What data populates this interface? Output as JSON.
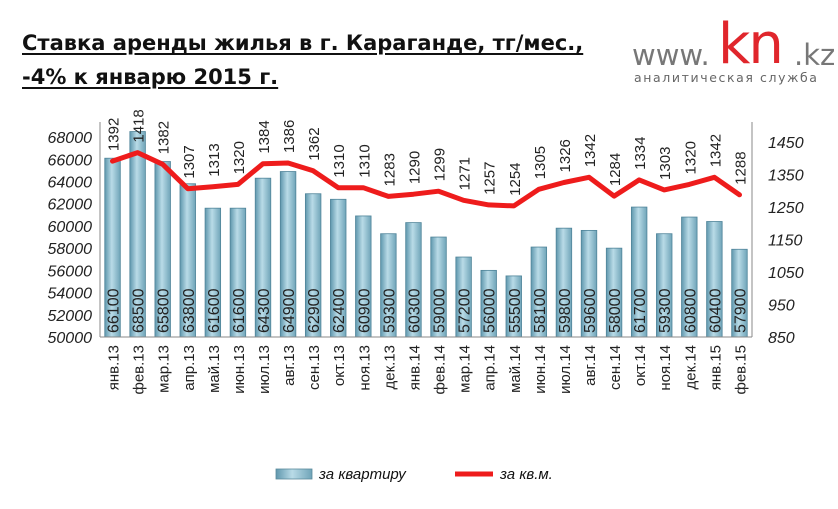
{
  "title": {
    "line1": "Ставка аренды жилья в г. Караганде, тг/мес.,",
    "line2": "-4% к январю 2015 г."
  },
  "logo": {
    "www": "www.",
    "kn": "kn",
    "kz": ".kz",
    "subtitle": "аналитическая служба"
  },
  "chart_data": {
    "type": "bar",
    "categories": [
      "янв.13",
      "фев.13",
      "мар.13",
      "апр.13",
      "май.13",
      "июн.13",
      "июл.13",
      "авг.13",
      "сен.13",
      "окт.13",
      "ноя.13",
      "дек.13",
      "янв.14",
      "фев.14",
      "мар.14",
      "апр.14",
      "май.14",
      "июн.14",
      "июл.14",
      "авг.14",
      "сен.14",
      "окт.14",
      "ноя.14",
      "дек.14",
      "янв.15",
      "фев.15"
    ],
    "series": [
      {
        "name": "за квартиру",
        "type": "bar",
        "axis": "left",
        "color": "#8fbfd0",
        "values": [
          66100,
          68500,
          65800,
          63800,
          61600,
          61600,
          64300,
          64900,
          62900,
          62400,
          60900,
          59300,
          60300,
          59000,
          57200,
          56000,
          55500,
          58100,
          59800,
          59600,
          58000,
          61700,
          59300,
          60800,
          60400,
          57900
        ]
      },
      {
        "name": "за кв.м.",
        "type": "line",
        "axis": "right",
        "color": "#ee1c1c",
        "values": [
          1392,
          1418,
          1382,
          1307,
          1313,
          1320,
          1384,
          1386,
          1362,
          1310,
          1310,
          1283,
          1290,
          1299,
          1271,
          1257,
          1254,
          1305,
          1326,
          1342,
          1284,
          1334,
          1303,
          1320,
          1342,
          1288
        ]
      }
    ],
    "left_axis": {
      "ylim": [
        50000,
        69000
      ],
      "ticks": [
        50000,
        52000,
        54000,
        56000,
        58000,
        60000,
        62000,
        64000,
        66000,
        68000
      ]
    },
    "right_axis": {
      "ylim": [
        850,
        1500
      ],
      "ticks": [
        850,
        950,
        1050,
        1150,
        1250,
        1350,
        1450
      ]
    },
    "legend": "bottom",
    "grid": false
  }
}
